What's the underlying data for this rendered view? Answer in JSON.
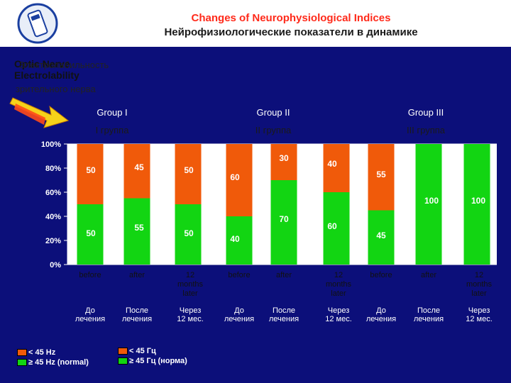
{
  "header": {
    "title_en": "Changes of Neurophysiological Indices",
    "title_ru": "Нейрофизиологические показатели в динамике"
  },
  "left_label": {
    "en_line1": "Optic Nerve",
    "en_line2": "Electrolability",
    "ru_line1": "Электролабильность",
    "ru_line2": "зрительного нерва"
  },
  "groups": [
    {
      "label_en": "Group I",
      "label_ru": "I группа"
    },
    {
      "label_en": "Group II",
      "label_ru": "II группа"
    },
    {
      "label_en": "Group III",
      "label_ru": "III группа"
    }
  ],
  "legend": {
    "en_low": "< 45 Hz",
    "en_high": "≥ 45 Hz (normal)",
    "ru_low": "< 45 Гц",
    "ru_high": "≥ 45 Гц (норма)"
  },
  "colors": {
    "low": "#f05a0a",
    "high": "#12d512",
    "background": "#0c0f7a",
    "plot": "#ffffff"
  },
  "chart_data": {
    "type": "bar",
    "stacked": true,
    "percent": true,
    "ylim": [
      0,
      100
    ],
    "yticks": [
      "0%",
      "20%",
      "40%",
      "60%",
      "80%",
      "100%"
    ],
    "categories": [
      "before",
      "after",
      "12 months later",
      "before",
      "after",
      "12 months later",
      "before",
      "after",
      "12 months later"
    ],
    "categories_ru": [
      "До лечения",
      "После лечения",
      "Через 12 мес.",
      "До лечения",
      "После лечения",
      "Через 12 мес.",
      "До лечения",
      "После лечения",
      "Через 12 мес."
    ],
    "series": [
      {
        "name": "≥ 45 Hz (normal)",
        "values": [
          50,
          55,
          50,
          40,
          70,
          60,
          45,
          100,
          100
        ]
      },
      {
        "name": "< 45 Hz",
        "values": [
          50,
          45,
          50,
          60,
          30,
          40,
          55,
          0,
          0
        ]
      }
    ]
  }
}
